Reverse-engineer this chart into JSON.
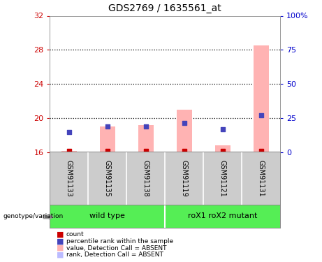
{
  "title": "GDS2769 / 1635561_at",
  "samples": [
    "GSM91133",
    "GSM91135",
    "GSM91138",
    "GSM91119",
    "GSM91121",
    "GSM91131"
  ],
  "groups": [
    "wild type",
    "roX1 roX2 mutant"
  ],
  "ylim_left": [
    16,
    32
  ],
  "ylim_right": [
    0,
    100
  ],
  "yticks_left": [
    16,
    20,
    24,
    28,
    32
  ],
  "yticks_right": [
    0,
    25,
    50,
    75,
    100
  ],
  "ytick_labels_right": [
    "0",
    "25",
    "50",
    "75",
    "100%"
  ],
  "bar_bottom": 16,
  "pink_bar_tops": [
    16.15,
    19.0,
    19.2,
    21.0,
    16.8,
    28.5
  ],
  "red_dot_values": [
    16.1,
    16.1,
    16.1,
    16.1,
    16.1,
    16.1
  ],
  "blue_dot_values": [
    18.3,
    19.0,
    19.0,
    19.4,
    18.7,
    20.3
  ],
  "bar_color_pink": "#ffb3b3",
  "dot_color_blue": "#4444bb",
  "dot_color_red": "#cc0000",
  "group_color_wt": "#55ee55",
  "group_color_mut": "#33dd33",
  "sample_box_color": "#cccccc",
  "background_color": "#ffffff",
  "tick_color_left": "#cc0000",
  "tick_color_right": "#0000cc",
  "legend_colors": [
    "#cc0000",
    "#4444bb",
    "#ffb3b3",
    "#bbbbff"
  ],
  "legend_labels": [
    "count",
    "percentile rank within the sample",
    "value, Detection Call = ABSENT",
    "rank, Detection Call = ABSENT"
  ],
  "dotted_lines": [
    20,
    24,
    28
  ],
  "bar_width": 0.4
}
